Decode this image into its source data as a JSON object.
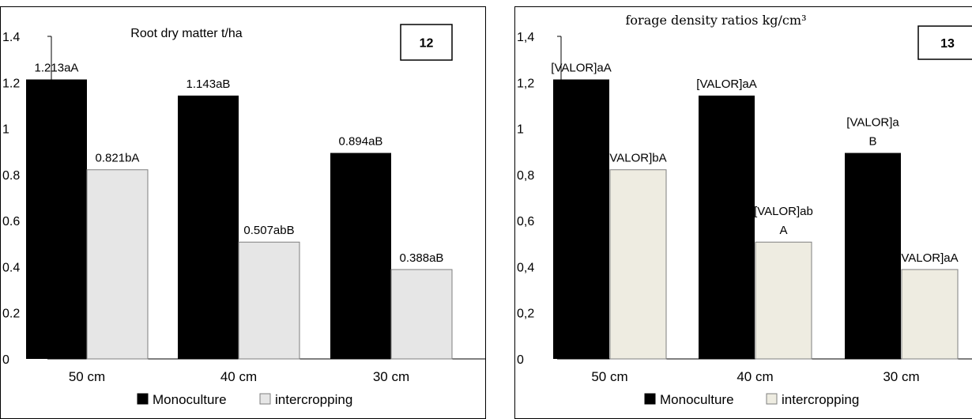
{
  "chart_data": [
    {
      "type": "bar",
      "badge": "12",
      "title": "Root dry matter t/ha",
      "categories": [
        "50 cm",
        "40 cm",
        "30 cm"
      ],
      "ylim": [
        0,
        1.4
      ],
      "yticks": [
        "0",
        "0.2",
        "0.4",
        "0.6",
        "0.8",
        "1",
        "1.2",
        "1.4"
      ],
      "series": [
        {
          "name": "Monoculture",
          "color": "#000000",
          "values": [
            1.213,
            1.143,
            0.894
          ],
          "labels": [
            [
              "1.213aA"
            ],
            [
              "1.143aB"
            ],
            [
              "0.894aB"
            ]
          ]
        },
        {
          "name": "intercropping",
          "color": "#e6e6e6",
          "values": [
            0.821,
            0.507,
            0.388
          ],
          "labels": [
            [
              "0.821bA"
            ],
            [
              "0.507abB"
            ],
            [
              "0.388aB"
            ]
          ]
        }
      ],
      "legend_position": "bottom",
      "grid": false
    },
    {
      "type": "bar",
      "badge": "13",
      "title": "forage density ratios kg/cm³",
      "categories": [
        "50 cm",
        "40 cm",
        "30 cm"
      ],
      "ylim": [
        0,
        1.4
      ],
      "yticks": [
        "0",
        "0,2",
        "0,4",
        "0,6",
        "0,8",
        "1",
        "1,2",
        "1,4"
      ],
      "series": [
        {
          "name": "Monoculture",
          "color": "#000000",
          "values": [
            1.213,
            1.143,
            0.894
          ],
          "labels": [
            [
              "[VALOR]aA"
            ],
            [
              "[VALOR]aA"
            ],
            [
              "[VALOR]a",
              "B"
            ]
          ]
        },
        {
          "name": "intercropping",
          "color": "#eeece1",
          "values": [
            0.821,
            0.507,
            0.388
          ],
          "labels": [
            [
              "VALOR]bA"
            ],
            [
              "[VALOR]ab",
              "A"
            ],
            [
              "VALOR]aA"
            ]
          ]
        }
      ],
      "legend_position": "bottom",
      "grid": false
    }
  ]
}
